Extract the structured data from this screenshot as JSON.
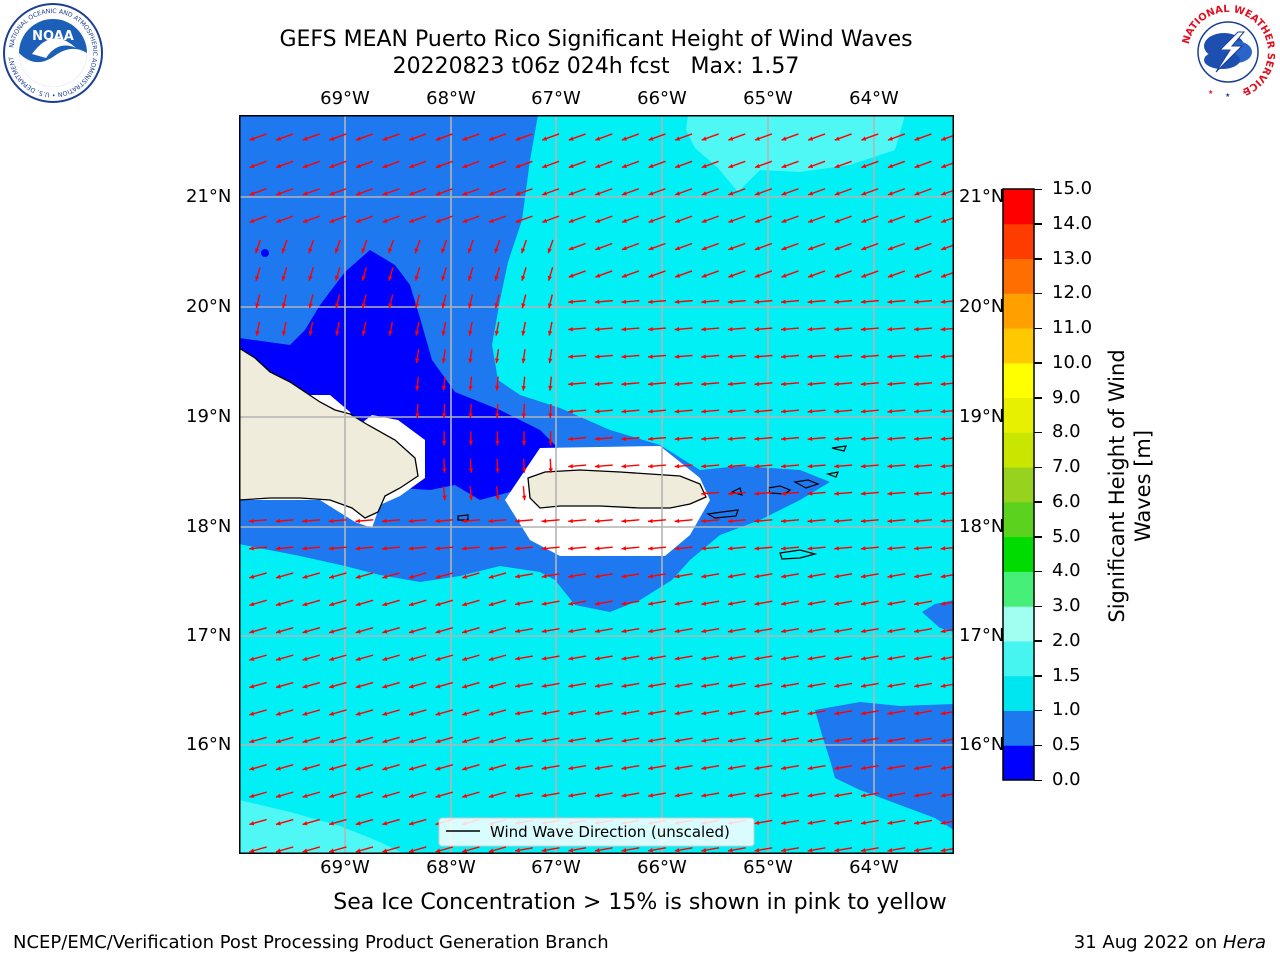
{
  "title_line1": "GEFS MEAN Puerto Rico Significant Height of Wind Waves",
  "title_line2": "20220823 t06z 024h fcst   Max: 1.57",
  "lon_labels": [
    "69°W",
    "68°W",
    "67°W",
    "66°W",
    "65°W",
    "64°W"
  ],
  "lat_labels": [
    "21°N",
    "20°N",
    "19°N",
    "18°N",
    "17°N",
    "16°N"
  ],
  "legend_text": "Wind Wave Direction (unscaled)",
  "caption": "Sea Ice Concentration > 15% is shown in pink to yellow",
  "footer_left": "NCEP/EMC/Verification Post Processing Product Generation Branch",
  "footer_right_prefix": "31 Aug 2022 on ",
  "footer_right_host": "Hera",
  "colorbar": {
    "label_line1": "Significant Height of Wind",
    "label_line2": "Waves [m]",
    "ticks": [
      "15.0",
      "14.0",
      "13.0",
      "12.0",
      "11.0",
      "10.0",
      "9.0",
      "8.0",
      "7.0",
      "6.0",
      "5.0",
      "4.0",
      "3.0",
      "2.0",
      "1.5",
      "1.0",
      "0.5",
      "0.0"
    ],
    "colors_bottom_to_top": [
      "#0000ff",
      "#1e78f0",
      "#00e6f0",
      "#46f5f0",
      "#a0fff0",
      "#46f078",
      "#00dc00",
      "#5ad21e",
      "#96d21e",
      "#c8e600",
      "#e6f000",
      "#ffff00",
      "#ffc800",
      "#ffa000",
      "#ff6e00",
      "#ff3c00",
      "#ff0000"
    ]
  },
  "map_colors": {
    "deep_blue": "#0000ff",
    "mid_blue": "#1e78f0",
    "cyan": "#00f0f5",
    "light_cyan": "#4ff7f5",
    "land": "#efecdc",
    "arrow": "#ff0000"
  },
  "logos": {
    "noaa_text": "NOAA",
    "noaa_ring": "NATIONAL OCEANIC AND ATMOSPHERIC ADMINISTRATION • U.S. DEPARTMENT OF COMMERCE",
    "nws_ring": "NATIONAL WEATHER SERVICE"
  }
}
